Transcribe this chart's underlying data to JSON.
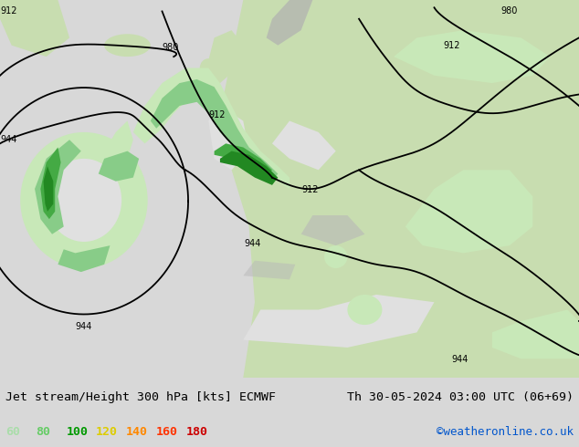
{
  "title_left": "Jet stream/Height 300 hPa [kts] ECMWF",
  "title_right": "Th 30-05-2024 03:00 UTC (06+69)",
  "credit": "©weatheronline.co.uk",
  "legend_values": [
    "60",
    "80",
    "100",
    "120",
    "140",
    "160",
    "180"
  ],
  "legend_colors": [
    "#aaddaa",
    "#66cc66",
    "#009900",
    "#ddcc00",
    "#ff8800",
    "#ff3300",
    "#cc0000"
  ],
  "bg_color": "#d8d8d8",
  "map_bg_color": "#e8e8e8",
  "land_light_green": "#c8ddb0",
  "land_mid_green": "#a0c878",
  "wind_pale_green": "#c8e8b8",
  "wind_light_green": "#88cc88",
  "wind_mid_green": "#44aa44",
  "wind_dark_green": "#228822",
  "ocean_gray": "#e0e0e0",
  "land_gray": "#c0c0c0",
  "contour_color": "#000000",
  "title_fontsize": 9.5,
  "credit_fontsize": 9,
  "legend_fontsize": 9.5,
  "figwidth": 6.34,
  "figheight": 4.9,
  "dpi": 100
}
